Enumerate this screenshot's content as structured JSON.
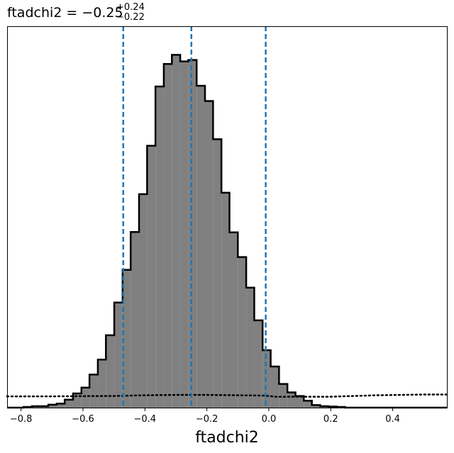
{
  "chart_data": {
    "type": "histogram",
    "title": {
      "main": "ftadchi2 = −0.25",
      "sup": "+0.24",
      "sub": "−0.22"
    },
    "xlabel": "ftadchi2",
    "ylabel": "",
    "xlim": [
      -0.845,
      0.575
    ],
    "ylim": [
      0,
      1.0
    ],
    "y_ticks_shown": false,
    "grid": false,
    "x_ticks": [
      {
        "value": -0.8,
        "label": "−0.8"
      },
      {
        "value": -0.6,
        "label": "−0.6"
      },
      {
        "value": -0.4,
        "label": "−0.4"
      },
      {
        "value": -0.2,
        "label": "−0.2"
      },
      {
        "value": 0.0,
        "label": "0.0"
      },
      {
        "value": 0.2,
        "label": "0.2"
      },
      {
        "value": 0.4,
        "label": "0.4"
      }
    ],
    "bin_edges": [
      -0.845,
      -0.819,
      -0.792,
      -0.765,
      -0.738,
      -0.712,
      -0.685,
      -0.659,
      -0.632,
      -0.605,
      -0.579,
      -0.552,
      -0.526,
      -0.499,
      -0.472,
      -0.446,
      -0.419,
      -0.393,
      -0.366,
      -0.339,
      -0.313,
      -0.286,
      -0.26,
      -0.233,
      -0.206,
      -0.18,
      -0.153,
      -0.127,
      -0.1,
      -0.073,
      -0.047,
      -0.02,
      0.006,
      0.033,
      0.06,
      0.086,
      0.113,
      0.139,
      0.166,
      0.193,
      0.219,
      0.246,
      0.272,
      0.299,
      0.326,
      0.352,
      0.379,
      0.405,
      0.432,
      0.459,
      0.485,
      0.512,
      0.538,
      0.575
    ],
    "bin_values": [
      0.0,
      0.0,
      0.002,
      0.004,
      0.004,
      0.008,
      0.011,
      0.022,
      0.039,
      0.055,
      0.091,
      0.132,
      0.199,
      0.289,
      0.379,
      0.483,
      0.587,
      0.72,
      0.883,
      0.945,
      0.97,
      0.952,
      0.956,
      0.885,
      0.843,
      0.738,
      0.591,
      0.482,
      0.414,
      0.33,
      0.24,
      0.158,
      0.113,
      0.065,
      0.042,
      0.032,
      0.019,
      0.007,
      0.004,
      0.003,
      0.002,
      0.0,
      0.0,
      0.0,
      0.0,
      0.0,
      0.0,
      0.0,
      0.0,
      0.0,
      0.0,
      0.0,
      0.0
    ],
    "hist_fill": "#808080",
    "hist_edge": "#000000",
    "quantile_lines": [
      -0.47,
      -0.25,
      -0.01
    ],
    "quantile_color": "#1f77b4",
    "prior_curve": {
      "style": "dotted",
      "color": "#000000",
      "x": [
        -0.845,
        -0.7,
        -0.5,
        -0.4,
        -0.3,
        -0.2,
        -0.1,
        -0.01,
        0.02,
        0.2,
        0.35,
        0.5,
        0.575
      ],
      "y": [
        0.031,
        0.031,
        0.032,
        0.034,
        0.035,
        0.035,
        0.034,
        0.033,
        0.03,
        0.03,
        0.034,
        0.036,
        0.036
      ]
    }
  }
}
